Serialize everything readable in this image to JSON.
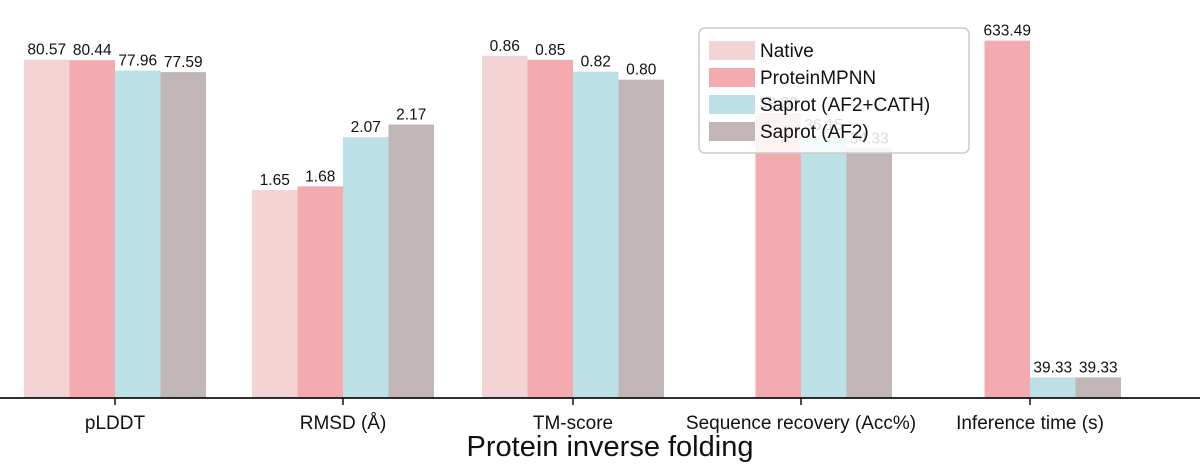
{
  "chart_data": {
    "type": "bar",
    "xlabel": "Protein inverse folding",
    "categories": [
      "pLDDT",
      "RMSD (Å)",
      "TM-score",
      "Sequence recovery (Acc%)",
      "Inference time (s)"
    ],
    "series": [
      {
        "name": "Native",
        "color": "#f4d3d4",
        "values": [
          80.57,
          1.65,
          0.86,
          null,
          null
        ],
        "labels": [
          "80.57",
          "1.65",
          "0.86",
          "",
          ""
        ]
      },
      {
        "name": "ProteinMPNN",
        "color": "#f4abb0",
        "values": [
          80.44,
          1.68,
          0.85,
          39.2,
          633.49
        ],
        "labels": [
          "80.44",
          "1.68",
          "0.85",
          "39.20",
          "633.49"
        ]
      },
      {
        "name": "Saprot (AF2+CATH)",
        "color": "#bbe0e6",
        "values": [
          77.96,
          2.07,
          0.82,
          36.15,
          39.33
        ],
        "labels": [
          "77.96",
          "2.07",
          "0.82",
          "36.15",
          "39.33"
        ]
      },
      {
        "name": "Saprot (AF2)",
        "color": "#c2b5b5",
        "values": [
          77.59,
          2.17,
          0.8,
          34.33,
          39.33
        ],
        "labels": [
          "77.59",
          "2.17",
          "0.80",
          "34.33",
          "39.33"
        ]
      }
    ],
    "group_ylim": [
      [
        0,
        90
      ],
      [
        0,
        3.0
      ],
      [
        0,
        0.95
      ],
      [
        0,
        52
      ],
      [
        0,
        670
      ]
    ],
    "display_overrides": [
      [
        4,
        2,
        0.0545
      ],
      [
        4,
        3,
        0.0545
      ]
    ],
    "legend_position": "top-right",
    "grid": false
  }
}
